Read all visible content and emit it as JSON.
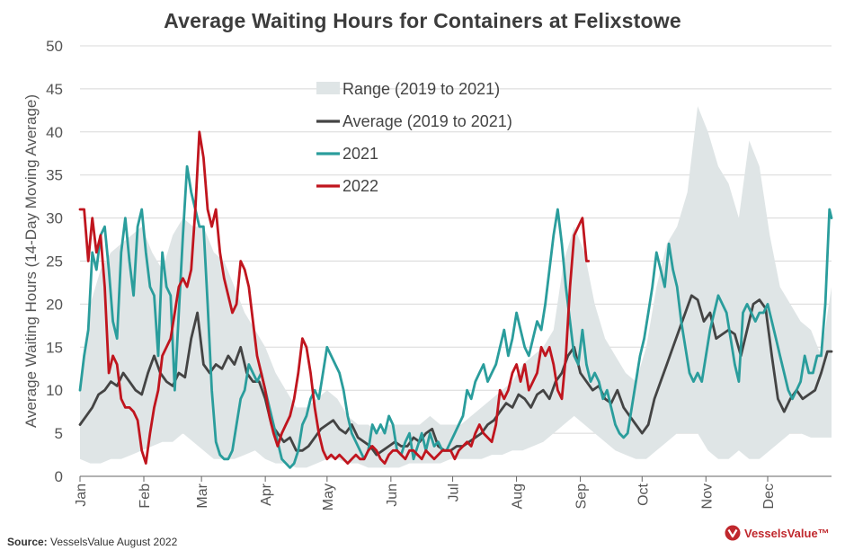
{
  "title": "Average Waiting Hours for Containers at Felixstowe",
  "source": {
    "label": "Source:",
    "text": "VesselsValue August 2022"
  },
  "logo_text": "VesselsValue™",
  "colors": {
    "range": "#dfe5e6",
    "average": "#444444",
    "y2021": "#2a9d9c",
    "y2022": "#c0151e",
    "grid": "#d8d8d8",
    "brand": "#c0282d"
  },
  "chart_data": {
    "type": "line",
    "title": "Average Waiting Hours for Containers at Felixstowe",
    "xlabel": "",
    "ylabel": "Average Waiting Hours (14-Day Moving Average)",
    "ylim": [
      0,
      50
    ],
    "yticks": [
      0,
      5,
      10,
      15,
      20,
      25,
      30,
      35,
      40,
      45,
      50
    ],
    "xlim": [
      0,
      365
    ],
    "xticks": [
      {
        "label": "Jan",
        "x": 0
      },
      {
        "label": "Feb",
        "x": 31
      },
      {
        "label": "Mar",
        "x": 59
      },
      {
        "label": "Apr",
        "x": 90
      },
      {
        "label": "May",
        "x": 120
      },
      {
        "label": "Jun",
        "x": 151
      },
      {
        "label": "Jul",
        "x": 181
      },
      {
        "label": "Aug",
        "x": 212
      },
      {
        "label": "Sep",
        "x": 243
      },
      {
        "label": "Oct",
        "x": 273
      },
      {
        "label": "Nov",
        "x": 304
      },
      {
        "label": "Dec",
        "x": 334
      }
    ],
    "grid": true,
    "legend_position": "top-center",
    "series": [
      {
        "name": "Range (2019 to 2021)",
        "kind": "band",
        "x": [
          0,
          5,
          10,
          15,
          20,
          25,
          30,
          35,
          40,
          45,
          50,
          55,
          60,
          65,
          70,
          75,
          80,
          85,
          90,
          95,
          100,
          105,
          110,
          115,
          120,
          125,
          130,
          135,
          140,
          145,
          150,
          155,
          160,
          165,
          170,
          175,
          180,
          185,
          190,
          195,
          200,
          205,
          210,
          215,
          220,
          225,
          230,
          235,
          240,
          245,
          250,
          255,
          260,
          265,
          270,
          275,
          280,
          285,
          290,
          295,
          300,
          305,
          310,
          315,
          320,
          325,
          330,
          335,
          340,
          345,
          350,
          355,
          360,
          365
        ],
        "low": [
          2,
          1.5,
          1.5,
          2,
          2,
          2.5,
          3,
          3.5,
          4,
          4,
          5,
          4,
          3,
          2,
          2,
          2,
          2.5,
          3,
          2,
          1.5,
          1.5,
          1,
          1,
          1.5,
          2,
          2,
          1.5,
          1.5,
          1,
          1,
          1,
          1,
          1.5,
          1.5,
          1.5,
          1.5,
          2,
          2,
          2,
          2,
          2.5,
          2.5,
          3,
          3,
          3.5,
          4,
          5,
          6,
          7,
          6,
          5,
          4,
          3,
          2.5,
          2,
          2,
          3,
          4,
          5,
          5,
          5,
          3,
          2,
          2,
          3,
          2,
          2,
          3,
          4,
          5,
          5,
          4.5,
          4.5,
          4.5
        ],
        "high": [
          10,
          20,
          24,
          26,
          27,
          28,
          29,
          26,
          24,
          28,
          30,
          29,
          29,
          26,
          25,
          22,
          19,
          17,
          15,
          12,
          10,
          8,
          8,
          9,
          10,
          9,
          7,
          6,
          6,
          5,
          6,
          6,
          6,
          6,
          7,
          6,
          6,
          6,
          7,
          8,
          9,
          10,
          11,
          13,
          14,
          15,
          17,
          25,
          29,
          26,
          20,
          16,
          14,
          12,
          11,
          15,
          22,
          27,
          29,
          33,
          43,
          40,
          36,
          34,
          30,
          39,
          36,
          28,
          22,
          20,
          18,
          17,
          14,
          22
        ]
      },
      {
        "name": "Average (2019 to 2021)",
        "kind": "line",
        "x": [
          0,
          3,
          6,
          9,
          12,
          15,
          18,
          21,
          24,
          27,
          30,
          33,
          36,
          39,
          42,
          45,
          48,
          51,
          54,
          57,
          60,
          63,
          66,
          69,
          72,
          75,
          78,
          81,
          84,
          87,
          90,
          93,
          96,
          99,
          102,
          105,
          108,
          111,
          114,
          117,
          120,
          123,
          126,
          129,
          132,
          135,
          138,
          141,
          144,
          147,
          150,
          153,
          156,
          159,
          162,
          165,
          168,
          171,
          174,
          177,
          180,
          183,
          186,
          189,
          192,
          195,
          198,
          201,
          204,
          207,
          210,
          213,
          216,
          219,
          222,
          225,
          228,
          231,
          234,
          237,
          240,
          243,
          246,
          249,
          252,
          255,
          258,
          261,
          264,
          267,
          270,
          273,
          276,
          279,
          282,
          285,
          288,
          291,
          294,
          297,
          300,
          303,
          306,
          309,
          312,
          315,
          318,
          321,
          324,
          327,
          330,
          333,
          336,
          339,
          342,
          345,
          348,
          351,
          354,
          357,
          360,
          363,
          365
        ],
        "y": [
          6,
          7,
          8,
          9.5,
          10,
          11,
          10.5,
          12,
          11,
          10,
          9.5,
          12,
          14,
          12,
          11,
          10.5,
          12,
          11.5,
          16,
          19,
          13,
          12,
          13,
          12.5,
          14,
          13,
          15,
          12,
          11,
          11,
          9,
          6,
          5,
          4,
          4.5,
          3,
          3,
          3.5,
          4.5,
          5.5,
          6,
          6.5,
          5.5,
          5,
          6,
          4.5,
          4,
          3.5,
          2.5,
          3,
          3.5,
          4,
          3.5,
          3.5,
          4.5,
          4,
          5,
          5.5,
          3.5,
          3,
          3,
          3.5,
          3.5,
          4,
          4.5,
          5,
          6,
          6.5,
          7.5,
          8.5,
          8,
          9.5,
          9,
          8,
          9.5,
          10,
          9,
          11,
          12,
          14,
          15,
          12,
          11,
          10,
          10.5,
          9,
          8.5,
          10,
          8,
          7,
          6,
          5,
          6,
          9,
          11,
          13,
          15,
          17,
          19,
          21,
          20.5,
          18,
          19,
          16,
          16.5,
          17,
          16.5,
          14,
          17,
          20,
          20.5,
          19.5,
          14,
          9,
          7.5,
          9,
          10,
          9,
          9.5,
          10,
          12,
          14.5,
          14.5
        ]
      },
      {
        "name": "2021",
        "kind": "line",
        "x": [
          0,
          2,
          4,
          6,
          8,
          10,
          12,
          14,
          16,
          18,
          20,
          22,
          24,
          26,
          28,
          30,
          32,
          34,
          36,
          38,
          40,
          42,
          44,
          46,
          48,
          50,
          52,
          54,
          56,
          58,
          60,
          62,
          64,
          66,
          68,
          70,
          72,
          74,
          76,
          78,
          80,
          82,
          84,
          86,
          88,
          90,
          92,
          94,
          96,
          98,
          100,
          102,
          104,
          106,
          108,
          110,
          112,
          114,
          116,
          118,
          120,
          122,
          124,
          126,
          128,
          130,
          132,
          134,
          136,
          138,
          140,
          142,
          144,
          146,
          148,
          150,
          152,
          154,
          156,
          158,
          160,
          162,
          164,
          166,
          168,
          170,
          172,
          174,
          176,
          178,
          180,
          182,
          184,
          186,
          188,
          190,
          192,
          194,
          196,
          198,
          200,
          202,
          204,
          206,
          208,
          210,
          212,
          214,
          216,
          218,
          220,
          222,
          224,
          226,
          228,
          230,
          232,
          234,
          236,
          238,
          240,
          242,
          244,
          246,
          248,
          250,
          252,
          254,
          256,
          258,
          260,
          262,
          264,
          266,
          268,
          270,
          272,
          274,
          276,
          278,
          280,
          282,
          284,
          286,
          288,
          290,
          292,
          294,
          296,
          298,
          300,
          302,
          304,
          306,
          308,
          310,
          312,
          314,
          316,
          318,
          320,
          322,
          324,
          326,
          328,
          330,
          332,
          334,
          336,
          338,
          340,
          342,
          344,
          346,
          348,
          350,
          352,
          354,
          356,
          358,
          360,
          362,
          364,
          365
        ],
        "y": [
          10,
          14,
          17,
          26,
          24,
          28,
          29,
          24,
          18,
          16,
          26,
          30,
          25,
          21,
          29,
          31,
          26,
          22,
          21,
          14,
          26,
          22,
          21,
          10,
          19,
          28,
          36,
          33,
          31,
          29,
          29,
          20,
          10,
          4,
          2.5,
          2,
          2,
          3,
          6,
          9,
          10,
          13,
          12,
          11,
          12,
          10,
          8,
          6,
          4,
          2,
          1.5,
          1,
          1.5,
          3,
          6,
          7,
          9,
          10,
          9,
          12,
          15,
          14,
          13,
          12,
          10,
          7,
          5,
          4,
          3,
          2,
          3,
          6,
          5,
          6,
          5,
          7,
          6,
          3,
          2.5,
          4,
          5,
          2,
          3.5,
          5,
          3,
          5,
          3.5,
          4,
          3,
          3,
          4,
          5,
          6,
          7,
          10,
          9,
          11,
          12,
          13,
          11,
          12,
          13,
          15,
          17,
          14,
          16,
          19,
          17,
          15,
          14,
          16,
          18,
          17,
          20,
          24,
          28,
          31,
          27,
          22,
          18,
          14,
          13,
          17,
          13,
          11,
          12,
          11,
          9,
          10,
          8,
          6,
          5,
          4.5,
          5,
          8,
          11,
          14,
          16,
          19,
          22,
          26,
          24,
          22,
          27,
          24,
          22,
          18,
          15,
          12,
          11,
          12,
          11,
          14,
          17,
          19,
          21,
          20,
          19,
          16,
          13,
          11,
          19,
          20,
          19,
          18,
          19,
          19,
          20,
          18,
          16,
          14,
          12,
          10,
          9,
          10,
          11,
          14,
          12,
          12,
          14,
          14,
          20,
          31,
          30
        ]
      },
      {
        "name": "2022",
        "kind": "line",
        "x": [
          0,
          2,
          4,
          6,
          8,
          10,
          12,
          14,
          16,
          18,
          20,
          22,
          24,
          26,
          28,
          30,
          32,
          34,
          36,
          38,
          40,
          42,
          44,
          46,
          48,
          50,
          52,
          54,
          56,
          58,
          60,
          62,
          64,
          66,
          68,
          70,
          72,
          74,
          76,
          78,
          80,
          82,
          84,
          86,
          88,
          90,
          92,
          94,
          96,
          98,
          100,
          102,
          104,
          106,
          108,
          110,
          112,
          114,
          116,
          118,
          120,
          122,
          124,
          126,
          128,
          130,
          132,
          134,
          136,
          138,
          140,
          142,
          144,
          146,
          148,
          150,
          152,
          154,
          156,
          158,
          160,
          162,
          164,
          166,
          168,
          170,
          172,
          174,
          176,
          178,
          180,
          182,
          184,
          186,
          188,
          190,
          192,
          194,
          196,
          198,
          200,
          202,
          204,
          206,
          208,
          210,
          212,
          214,
          216,
          218,
          220,
          222,
          224,
          226,
          228,
          230,
          232,
          234,
          236,
          238,
          240,
          242,
          244,
          246,
          247
        ],
        "y": [
          31,
          31,
          25,
          30,
          26,
          28,
          22,
          12,
          14,
          13,
          9,
          8,
          8,
          7.5,
          6.5,
          3,
          1.5,
          5,
          8,
          10,
          14,
          15,
          16,
          19,
          22,
          23,
          22,
          24,
          31,
          40,
          37,
          31,
          29,
          31,
          26,
          23,
          21,
          19,
          20,
          25,
          24,
          22,
          18,
          14,
          12,
          10,
          7,
          5,
          3.5,
          5,
          6,
          7,
          9,
          12,
          16,
          15,
          12,
          8,
          5,
          3,
          2,
          2.5,
          2,
          2.5,
          2,
          1.5,
          2,
          2.5,
          2,
          2,
          3,
          3.5,
          3,
          2,
          1.5,
          2.5,
          3,
          3,
          2.5,
          2,
          3,
          3,
          2.5,
          2,
          3,
          2.5,
          2,
          2.5,
          3,
          3,
          3,
          2,
          3,
          3.5,
          4,
          3.5,
          5,
          6,
          5,
          4.5,
          4,
          6,
          10,
          9,
          10,
          12,
          13,
          11,
          13,
          10,
          11,
          12,
          15,
          14,
          15,
          13,
          10,
          9,
          14,
          22,
          28,
          29,
          30,
          25,
          25
        ]
      }
    ]
  }
}
